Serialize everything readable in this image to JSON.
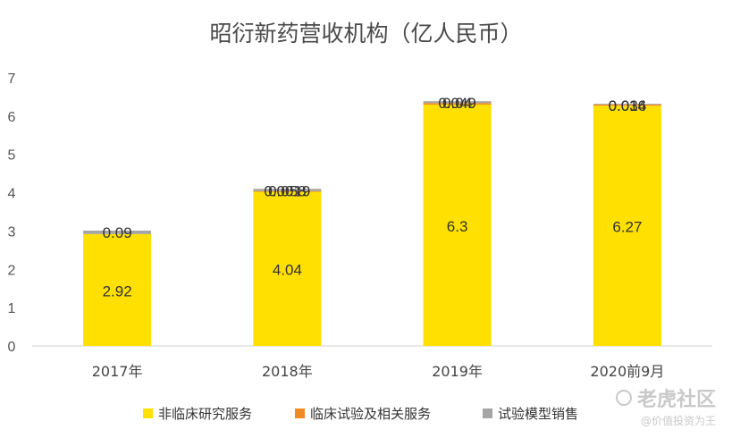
{
  "chart_data": {
    "type": "bar",
    "stacked": true,
    "title": "昭衍新药营收机构（亿人民币）",
    "categories": [
      "2017年",
      "2018年",
      "2019年",
      "2020前9月"
    ],
    "ylim": [
      0,
      7
    ],
    "yticks": [
      0,
      1,
      2,
      3,
      4,
      5,
      6,
      7
    ],
    "series": [
      {
        "name": "非临床研究服务",
        "color": "#FFE000",
        "values": [
          2.92,
          4.04,
          6.3,
          6.27
        ],
        "labels": [
          "2.92",
          "4.04",
          "6.3",
          "6.27"
        ]
      },
      {
        "name": "临床试验及相关服务",
        "color": "#F08A24",
        "values": [
          0,
          0.0019,
          0.04,
          0.034
        ],
        "labels": [
          "",
          "0.0019",
          "0.04",
          "0.034"
        ]
      },
      {
        "name": "试验模型销售",
        "color": "#A5A5A5",
        "values": [
          0.09,
          0.058,
          0.049,
          0.016
        ],
        "labels": [
          "0.09",
          "0.058",
          "0.049",
          "0.016"
        ]
      }
    ],
    "grid": false,
    "legend_position": "bottom"
  },
  "watermark": {
    "brand": "老虎社区",
    "handle": "@价值投资为王"
  }
}
